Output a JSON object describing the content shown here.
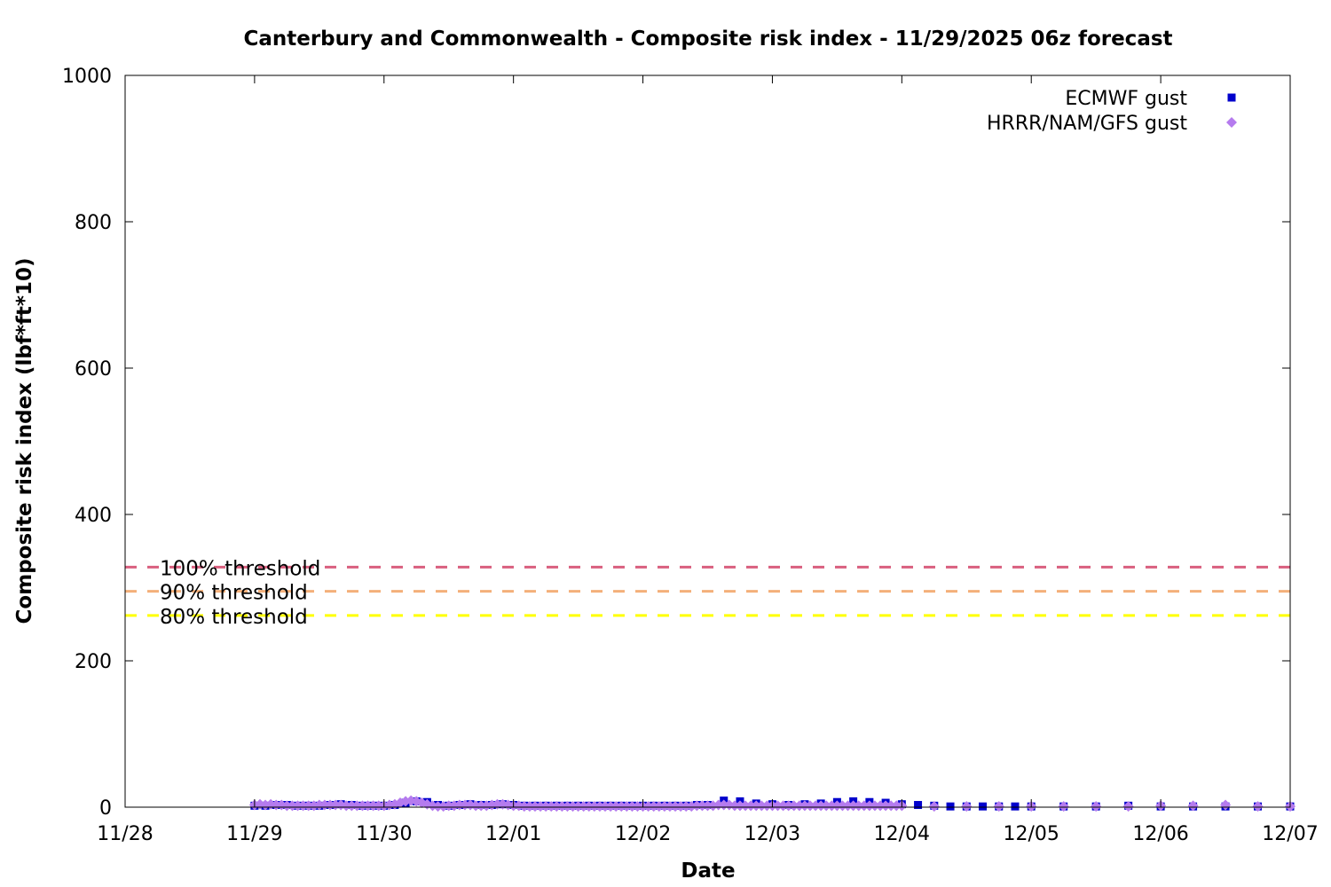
{
  "chart_data": {
    "type": "scatter",
    "title": "Canterbury and Commonwealth - Composite risk index - 11/29/2025 06z forecast",
    "xlabel": "Date",
    "ylabel": "Composite risk index (lbf*ft*10)",
    "x_axis": {
      "type": "date",
      "range": [
        "2025-11-28",
        "2025-12-07"
      ],
      "ticks": [
        {
          "date": "2025-11-28",
          "label": "11/28"
        },
        {
          "date": "2025-11-29",
          "label": "11/29"
        },
        {
          "date": "2025-11-30",
          "label": "11/30"
        },
        {
          "date": "2025-12-01",
          "label": "12/01"
        },
        {
          "date": "2025-12-02",
          "label": "12/02"
        },
        {
          "date": "2025-12-03",
          "label": "12/03"
        },
        {
          "date": "2025-12-04",
          "label": "12/04"
        },
        {
          "date": "2025-12-05",
          "label": "12/05"
        },
        {
          "date": "2025-12-06",
          "label": "12/06"
        },
        {
          "date": "2025-12-07",
          "label": "12/07"
        }
      ]
    },
    "y_axis": {
      "range": [
        0,
        1000
      ],
      "ticks": [
        {
          "value": 0,
          "label": "0"
        },
        {
          "value": 200,
          "label": "200"
        },
        {
          "value": 400,
          "label": "400"
        },
        {
          "value": 600,
          "label": "600"
        },
        {
          "value": 800,
          "label": "800"
        },
        {
          "value": 1000,
          "label": "1000"
        }
      ]
    },
    "grid": false,
    "legend_position": "top-right",
    "thresholds": [
      {
        "label": "100% threshold",
        "value": 328,
        "color": "#d95f7f"
      },
      {
        "label": "90% threshold",
        "value": 295,
        "color": "#f4b07a"
      },
      {
        "label": "80% threshold",
        "value": 262,
        "color": "#ffff00"
      }
    ],
    "series": [
      {
        "name": "ECMWF gust",
        "marker": "square",
        "color": "#0000cc",
        "points": [
          [
            "2025-11-29 00:00",
            2
          ],
          [
            "2025-11-29 02:00",
            2
          ],
          [
            "2025-11-29 04:00",
            3
          ],
          [
            "2025-11-29 06:00",
            3
          ],
          [
            "2025-11-29 08:00",
            2
          ],
          [
            "2025-11-29 10:00",
            2
          ],
          [
            "2025-11-29 12:00",
            2
          ],
          [
            "2025-11-29 14:00",
            3
          ],
          [
            "2025-11-29 16:00",
            4
          ],
          [
            "2025-11-29 18:00",
            3
          ],
          [
            "2025-11-29 20:00",
            2
          ],
          [
            "2025-11-29 22:00",
            2
          ],
          [
            "2025-11-30 00:00",
            2
          ],
          [
            "2025-11-30 02:00",
            3
          ],
          [
            "2025-11-30 04:00",
            6
          ],
          [
            "2025-11-30 06:00",
            8
          ],
          [
            "2025-11-30 08:00",
            7
          ],
          [
            "2025-11-30 10:00",
            3
          ],
          [
            "2025-11-30 12:00",
            2
          ],
          [
            "2025-11-30 14:00",
            3
          ],
          [
            "2025-11-30 16:00",
            4
          ],
          [
            "2025-11-30 18:00",
            3
          ],
          [
            "2025-11-30 20:00",
            3
          ],
          [
            "2025-11-30 22:00",
            4
          ],
          [
            "2025-12-01 00:00",
            3
          ],
          [
            "2025-12-01 02:00",
            2
          ],
          [
            "2025-12-01 04:00",
            2
          ],
          [
            "2025-12-01 06:00",
            2
          ],
          [
            "2025-12-01 08:00",
            2
          ],
          [
            "2025-12-01 10:00",
            2
          ],
          [
            "2025-12-01 12:00",
            2
          ],
          [
            "2025-12-01 14:00",
            2
          ],
          [
            "2025-12-01 16:00",
            2
          ],
          [
            "2025-12-01 18:00",
            2
          ],
          [
            "2025-12-01 20:00",
            2
          ],
          [
            "2025-12-01 22:00",
            2
          ],
          [
            "2025-12-02 00:00",
            2
          ],
          [
            "2025-12-02 02:00",
            2
          ],
          [
            "2025-12-02 04:00",
            2
          ],
          [
            "2025-12-02 06:00",
            2
          ],
          [
            "2025-12-02 08:00",
            2
          ],
          [
            "2025-12-02 10:00",
            3
          ],
          [
            "2025-12-02 12:00",
            3
          ],
          [
            "2025-12-02 15:00",
            9
          ],
          [
            "2025-12-02 18:00",
            8
          ],
          [
            "2025-12-02 21:00",
            5
          ],
          [
            "2025-12-03 00:00",
            4
          ],
          [
            "2025-12-03 03:00",
            3
          ],
          [
            "2025-12-03 06:00",
            4
          ],
          [
            "2025-12-03 09:00",
            5
          ],
          [
            "2025-12-03 12:00",
            7
          ],
          [
            "2025-12-03 15:00",
            8
          ],
          [
            "2025-12-03 18:00",
            7
          ],
          [
            "2025-12-03 21:00",
            6
          ],
          [
            "2025-12-04 00:00",
            4
          ],
          [
            "2025-12-04 03:00",
            3
          ],
          [
            "2025-12-04 06:00",
            2
          ],
          [
            "2025-12-04 09:00",
            1
          ],
          [
            "2025-12-04 12:00",
            1
          ],
          [
            "2025-12-04 15:00",
            1
          ],
          [
            "2025-12-04 18:00",
            1
          ],
          [
            "2025-12-04 21:00",
            1
          ],
          [
            "2025-12-05 00:00",
            1
          ],
          [
            "2025-12-05 06:00",
            1
          ],
          [
            "2025-12-05 12:00",
            1
          ],
          [
            "2025-12-05 18:00",
            2
          ],
          [
            "2025-12-06 00:00",
            1
          ],
          [
            "2025-12-06 06:00",
            1
          ],
          [
            "2025-12-06 12:00",
            1
          ],
          [
            "2025-12-06 18:00",
            1
          ],
          [
            "2025-12-07 00:00",
            1
          ]
        ]
      },
      {
        "name": "HRRR/NAM/GFS gust",
        "marker": "diamond",
        "color": "#b57bee",
        "points": [
          [
            "2025-11-29 00:00",
            3
          ],
          [
            "2025-11-29 01:00",
            4
          ],
          [
            "2025-11-29 02:00",
            3
          ],
          [
            "2025-11-29 03:00",
            4
          ],
          [
            "2025-11-29 04:00",
            3
          ],
          [
            "2025-11-29 05:00",
            3
          ],
          [
            "2025-11-29 06:00",
            2
          ],
          [
            "2025-11-29 07:00",
            2
          ],
          [
            "2025-11-29 08:00",
            2
          ],
          [
            "2025-11-29 09:00",
            2
          ],
          [
            "2025-11-29 10:00",
            2
          ],
          [
            "2025-11-29 11:00",
            2
          ],
          [
            "2025-11-29 12:00",
            3
          ],
          [
            "2025-11-29 13:00",
            3
          ],
          [
            "2025-11-29 14:00",
            3
          ],
          [
            "2025-11-29 15:00",
            3
          ],
          [
            "2025-11-29 16:00",
            3
          ],
          [
            "2025-11-29 17:00",
            2
          ],
          [
            "2025-11-29 18:00",
            2
          ],
          [
            "2025-11-29 19:00",
            2
          ],
          [
            "2025-11-29 20:00",
            2
          ],
          [
            "2025-11-29 21:00",
            2
          ],
          [
            "2025-11-29 22:00",
            2
          ],
          [
            "2025-11-29 23:00",
            2
          ],
          [
            "2025-11-30 00:00",
            2
          ],
          [
            "2025-11-30 01:00",
            3
          ],
          [
            "2025-11-30 02:00",
            4
          ],
          [
            "2025-11-30 03:00",
            6
          ],
          [
            "2025-11-30 04:00",
            8
          ],
          [
            "2025-11-30 05:00",
            9
          ],
          [
            "2025-11-30 06:00",
            8
          ],
          [
            "2025-11-30 07:00",
            6
          ],
          [
            "2025-11-30 08:00",
            4
          ],
          [
            "2025-11-30 09:00",
            2
          ],
          [
            "2025-11-30 10:00",
            1
          ],
          [
            "2025-11-30 11:00",
            1
          ],
          [
            "2025-11-30 12:00",
            2
          ],
          [
            "2025-11-30 13:00",
            2
          ],
          [
            "2025-11-30 14:00",
            3
          ],
          [
            "2025-11-30 15:00",
            3
          ],
          [
            "2025-11-30 16:00",
            3
          ],
          [
            "2025-11-30 17:00",
            2
          ],
          [
            "2025-11-30 18:00",
            2
          ],
          [
            "2025-11-30 19:00",
            2
          ],
          [
            "2025-11-30 20:00",
            3
          ],
          [
            "2025-11-30 21:00",
            4
          ],
          [
            "2025-11-30 22:00",
            4
          ],
          [
            "2025-11-30 23:00",
            3
          ],
          [
            "2025-12-01 00:00",
            2
          ],
          [
            "2025-12-01 01:00",
            2
          ],
          [
            "2025-12-01 02:00",
            1
          ],
          [
            "2025-12-01 03:00",
            1
          ],
          [
            "2025-12-01 04:00",
            1
          ],
          [
            "2025-12-01 05:00",
            1
          ],
          [
            "2025-12-01 06:00",
            1
          ],
          [
            "2025-12-01 07:00",
            1
          ],
          [
            "2025-12-01 08:00",
            1
          ],
          [
            "2025-12-01 09:00",
            1
          ],
          [
            "2025-12-01 10:00",
            1
          ],
          [
            "2025-12-01 11:00",
            1
          ],
          [
            "2025-12-01 12:00",
            1
          ],
          [
            "2025-12-01 13:00",
            1
          ],
          [
            "2025-12-01 14:00",
            1
          ],
          [
            "2025-12-01 15:00",
            1
          ],
          [
            "2025-12-01 16:00",
            1
          ],
          [
            "2025-12-01 17:00",
            1
          ],
          [
            "2025-12-01 18:00",
            1
          ],
          [
            "2025-12-01 19:00",
            1
          ],
          [
            "2025-12-01 20:00",
            1
          ],
          [
            "2025-12-01 21:00",
            1
          ],
          [
            "2025-12-01 22:00",
            1
          ],
          [
            "2025-12-01 23:00",
            1
          ],
          [
            "2025-12-02 00:00",
            1
          ],
          [
            "2025-12-02 01:00",
            1
          ],
          [
            "2025-12-02 02:00",
            1
          ],
          [
            "2025-12-02 03:00",
            1
          ],
          [
            "2025-12-02 04:00",
            1
          ],
          [
            "2025-12-02 05:00",
            1
          ],
          [
            "2025-12-02 06:00",
            1
          ],
          [
            "2025-12-02 07:00",
            1
          ],
          [
            "2025-12-02 08:00",
            1
          ],
          [
            "2025-12-02 09:00",
            1
          ],
          [
            "2025-12-02 10:00",
            2
          ],
          [
            "2025-12-02 11:00",
            2
          ],
          [
            "2025-12-02 12:00",
            2
          ],
          [
            "2025-12-02 13:00",
            2
          ],
          [
            "2025-12-02 14:00",
            3
          ],
          [
            "2025-12-02 15:00",
            3
          ],
          [
            "2025-12-02 16:00",
            3
          ],
          [
            "2025-12-02 17:00",
            2
          ],
          [
            "2025-12-02 18:00",
            2
          ],
          [
            "2025-12-02 19:00",
            2
          ],
          [
            "2025-12-02 20:00",
            2
          ],
          [
            "2025-12-02 21:00",
            2
          ],
          [
            "2025-12-02 22:00",
            2
          ],
          [
            "2025-12-02 23:00",
            2
          ],
          [
            "2025-12-03 00:00",
            2
          ],
          [
            "2025-12-03 01:00",
            2
          ],
          [
            "2025-12-03 02:00",
            2
          ],
          [
            "2025-12-03 03:00",
            2
          ],
          [
            "2025-12-03 04:00",
            2
          ],
          [
            "2025-12-03 05:00",
            2
          ],
          [
            "2025-12-03 06:00",
            2
          ],
          [
            "2025-12-03 07:00",
            2
          ],
          [
            "2025-12-03 08:00",
            2
          ],
          [
            "2025-12-03 09:00",
            2
          ],
          [
            "2025-12-03 10:00",
            2
          ],
          [
            "2025-12-03 11:00",
            2
          ],
          [
            "2025-12-03 12:00",
            2
          ],
          [
            "2025-12-03 13:00",
            2
          ],
          [
            "2025-12-03 14:00",
            2
          ],
          [
            "2025-12-03 15:00",
            2
          ],
          [
            "2025-12-03 16:00",
            2
          ],
          [
            "2025-12-03 17:00",
            2
          ],
          [
            "2025-12-03 18:00",
            2
          ],
          [
            "2025-12-03 19:00",
            2
          ],
          [
            "2025-12-03 20:00",
            2
          ],
          [
            "2025-12-03 21:00",
            2
          ],
          [
            "2025-12-03 22:00",
            2
          ],
          [
            "2025-12-03 23:00",
            2
          ],
          [
            "2025-12-04 00:00",
            2
          ],
          [
            "2025-12-04 06:00",
            1
          ],
          [
            "2025-12-04 12:00",
            1
          ],
          [
            "2025-12-04 18:00",
            1
          ],
          [
            "2025-12-05 00:00",
            1
          ],
          [
            "2025-12-05 06:00",
            1
          ],
          [
            "2025-12-05 12:00",
            1
          ],
          [
            "2025-12-05 18:00",
            1
          ],
          [
            "2025-12-06 00:00",
            2
          ],
          [
            "2025-12-06 06:00",
            2
          ],
          [
            "2025-12-06 12:00",
            3
          ],
          [
            "2025-12-06 18:00",
            1
          ],
          [
            "2025-12-07 00:00",
            1
          ]
        ]
      }
    ]
  }
}
